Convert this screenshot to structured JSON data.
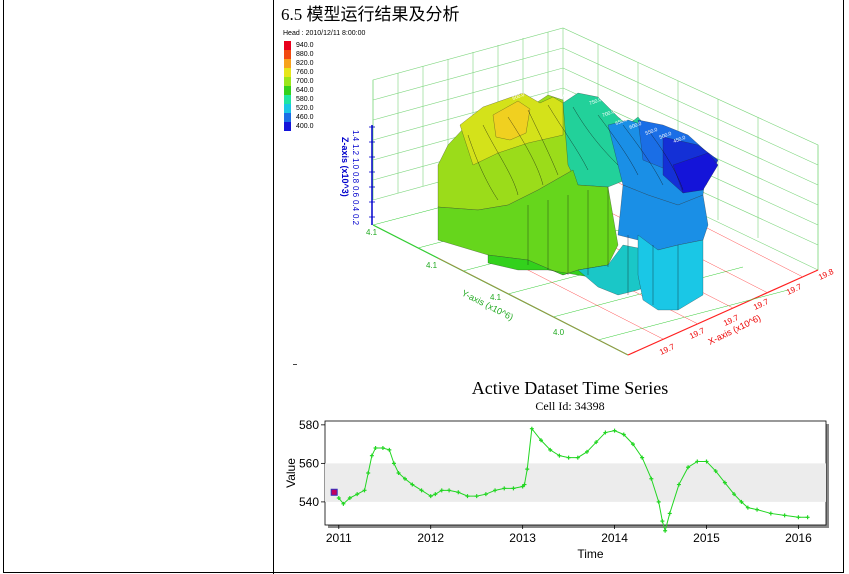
{
  "heading": "6.5 模型运行结果及分析",
  "legend": {
    "title": "Head : 2010/12/11 8:00:00",
    "entries": [
      {
        "label": "940.0",
        "color": "#e8001c"
      },
      {
        "label": "880.0",
        "color": "#f24a10"
      },
      {
        "label": "820.0",
        "color": "#f7a21c"
      },
      {
        "label": "760.0",
        "color": "#e6e61a"
      },
      {
        "label": "700.0",
        "color": "#9be61a"
      },
      {
        "label": "640.0",
        "color": "#33d11c"
      },
      {
        "label": "580.0",
        "color": "#1fe6a3"
      },
      {
        "label": "520.0",
        "color": "#1ac7e6"
      },
      {
        "label": "460.0",
        "color": "#1a6ee6"
      },
      {
        "label": "400.0",
        "color": "#1414d9"
      }
    ]
  },
  "axes3d": {
    "z_title": "Z-axis (x10^3)",
    "z_ticks": [
      "1.4",
      "1.2",
      "1.0",
      "0.8",
      "0.6",
      "0.4",
      "0.2"
    ],
    "y_title": "Y-axis (x10^6)",
    "y_ticks": [
      "4.1",
      "4.1",
      "4.1",
      "4.0"
    ],
    "x_title": "X-axis (x10^6)",
    "x_ticks": [
      "19.7",
      "19.7",
      "19.7",
      "19.7",
      "19.7",
      "19.8"
    ],
    "contour_labels": [
      "600.0",
      "550.0",
      "500.0",
      "750.0",
      "700.0",
      "650.0",
      "600.0",
      "550.0",
      "500.0",
      "450.0"
    ]
  },
  "timeseries": {
    "title": "Active Dataset Time Series",
    "subtitle": "Cell Id: 34398"
  },
  "chart_data": {
    "type": "line",
    "title": "Active Dataset Time Series",
    "subtitle": "Cell Id: 34398",
    "xlabel": "Time",
    "ylabel": "Value",
    "xlim": [
      2010.85,
      2016.3
    ],
    "ylim": [
      528,
      582
    ],
    "x_ticks": [
      "2011",
      "2012",
      "2013",
      "2014",
      "2015",
      "2016"
    ],
    "y_ticks": [
      "540",
      "560",
      "580"
    ],
    "legend_marker_color": "#c00060",
    "series": [
      {
        "color": "#22d622",
        "points": [
          [
            2011.0,
            542
          ],
          [
            2011.05,
            539
          ],
          [
            2011.12,
            542
          ],
          [
            2011.2,
            544
          ],
          [
            2011.28,
            546
          ],
          [
            2011.32,
            555
          ],
          [
            2011.36,
            564
          ],
          [
            2011.4,
            568
          ],
          [
            2011.48,
            568
          ],
          [
            2011.55,
            567
          ],
          [
            2011.6,
            560
          ],
          [
            2011.65,
            555
          ],
          [
            2011.72,
            552
          ],
          [
            2011.8,
            549
          ],
          [
            2011.9,
            546
          ],
          [
            2012.0,
            543
          ],
          [
            2012.05,
            544
          ],
          [
            2012.12,
            546
          ],
          [
            2012.2,
            546
          ],
          [
            2012.3,
            545
          ],
          [
            2012.4,
            543
          ],
          [
            2012.5,
            543
          ],
          [
            2012.6,
            544
          ],
          [
            2012.7,
            546
          ],
          [
            2012.8,
            547
          ],
          [
            2012.9,
            547
          ],
          [
            2013.0,
            548
          ],
          [
            2013.02,
            549
          ],
          [
            2013.05,
            557
          ],
          [
            2013.1,
            578
          ],
          [
            2013.2,
            572
          ],
          [
            2013.3,
            567
          ],
          [
            2013.4,
            564
          ],
          [
            2013.5,
            563
          ],
          [
            2013.6,
            563
          ],
          [
            2013.7,
            566
          ],
          [
            2013.8,
            571
          ],
          [
            2013.9,
            576
          ],
          [
            2014.0,
            577
          ],
          [
            2014.1,
            575
          ],
          [
            2014.2,
            570
          ],
          [
            2014.3,
            563
          ],
          [
            2014.4,
            552
          ],
          [
            2014.48,
            540
          ],
          [
            2014.52,
            530
          ],
          [
            2014.55,
            525
          ],
          [
            2014.6,
            534
          ],
          [
            2014.7,
            549
          ],
          [
            2014.8,
            558
          ],
          [
            2014.9,
            561
          ],
          [
            2015.0,
            561
          ],
          [
            2015.1,
            556
          ],
          [
            2015.2,
            550
          ],
          [
            2015.3,
            544
          ],
          [
            2015.38,
            540
          ],
          [
            2015.45,
            537
          ],
          [
            2015.55,
            536
          ],
          [
            2015.7,
            534
          ],
          [
            2015.85,
            533
          ],
          [
            2016.0,
            532
          ],
          [
            2016.1,
            532
          ]
        ]
      }
    ]
  }
}
